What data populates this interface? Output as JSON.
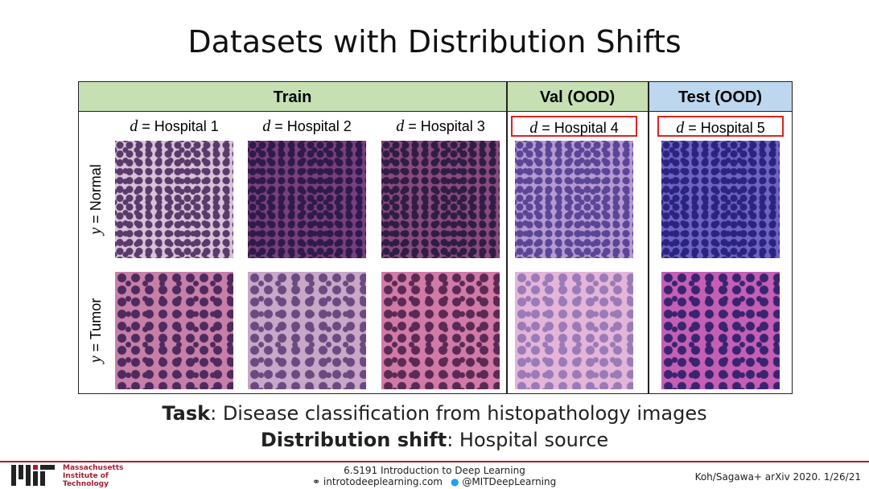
{
  "header": {
    "title": "Datasets with Distribution Shifts"
  },
  "table": {
    "groups": [
      "Train",
      "Val (OOD)",
      "Test (OOD)"
    ],
    "columns": [
      {
        "var": "d",
        "text": "= Hospital 1"
      },
      {
        "var": "d",
        "text": "= Hospital 2"
      },
      {
        "var": "d",
        "text": "= Hospital 3"
      },
      {
        "var": "d",
        "text": "= Hospital 4"
      },
      {
        "var": "d",
        "text": "= Hospital 5"
      }
    ],
    "rows": [
      {
        "var": "y",
        "text": "= Normal"
      },
      {
        "var": "y",
        "text": "= Tumor"
      }
    ]
  },
  "caption": [
    {
      "label": "Task",
      "text": ": Disease classification from histopathology images"
    },
    {
      "label": "Distribution shift",
      "text": ": Hospital source"
    }
  ],
  "footer": {
    "institution": [
      "Massachusetts",
      "Institute of",
      "Technology"
    ],
    "course": "6.S191 Introduction to Deep Learning",
    "website": "introtodeeplearning.com",
    "twitter": "@MITDeepLearning",
    "citation": "Koh/Sagawa+ arXiv 2020. 1/26/21"
  }
}
